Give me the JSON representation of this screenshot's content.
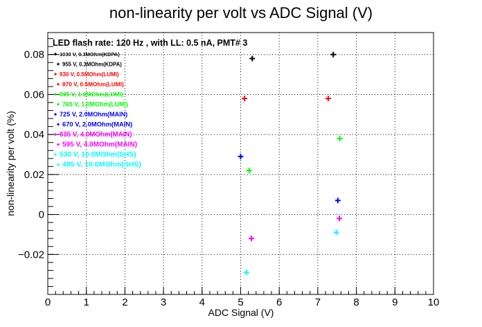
{
  "chart_data": {
    "type": "scatter",
    "title": "non-linearity per volt vs ADC Signal (V)",
    "xlabel": "ADC Signal (V)",
    "ylabel": "non-linearity per volt (%)",
    "xlim": [
      0,
      10
    ],
    "ylim": [
      -0.04,
      0.091
    ],
    "x_ticks": [
      0,
      1,
      2,
      3,
      4,
      5,
      6,
      7,
      8,
      9,
      10
    ],
    "y_ticks": [
      -0.02,
      0,
      0.02,
      0.04,
      0.06,
      0.08
    ],
    "y_tick_labels": [
      "−0.02",
      "0",
      "0.02",
      "0.04",
      "0.06",
      "0.08"
    ],
    "grid": true,
    "annotation": "LED flash rate: 120 Hz , with LL: 0.5 nA, PMT# 3",
    "legend_position": "top-left",
    "series": [
      {
        "name": "1030 V, 0.3MOhm(KDPA)",
        "color": "#000000",
        "x": [
          7.4
        ],
        "y": [
          0.08
        ]
      },
      {
        "name": "955 V, 0.3MOhm(KDPA)",
        "color": "#000000",
        "x": [
          5.3
        ],
        "y": [
          0.078
        ]
      },
      {
        "name": "930 V, 0.5MOhm(LUMI)",
        "color": "#ff0000",
        "x": [
          7.27
        ],
        "y": [
          0.058
        ]
      },
      {
        "name": "870 V, 0.5MOhm(LUMI)",
        "color": "#ff0000",
        "x": [
          5.1
        ],
        "y": [
          0.058
        ]
      },
      {
        "name": "805 V, 1.0MOhm(LUMI)",
        "color": "#00ff00",
        "x": [
          7.57
        ],
        "y": [
          0.038
        ]
      },
      {
        "name": "765 V, 1.0MOhm(LUMI)",
        "color": "#00ff00",
        "x": [
          5.22
        ],
        "y": [
          0.022
        ]
      },
      {
        "name": "725 V, 2.0MOhm(MAIN)",
        "color": "#0000ff",
        "x": [
          7.52
        ],
        "y": [
          0.007
        ]
      },
      {
        "name": "670 V, 2.0MOhm(MAIN)",
        "color": "#0000ff",
        "x": [
          5.0
        ],
        "y": [
          0.029
        ]
      },
      {
        "name": "635 V, 4.0MOhm(MAIN)",
        "color": "#ff00ff",
        "x": [
          7.56
        ],
        "y": [
          -0.002
        ]
      },
      {
        "name": "595 V, 4.0MOhm(MAIN)",
        "color": "#ff00ff",
        "x": [
          5.28
        ],
        "y": [
          -0.012
        ]
      },
      {
        "name": "530 V, 10.0MOhm(SHS)",
        "color": "#00ffff",
        "x": [
          7.48
        ],
        "y": [
          -0.009
        ]
      },
      {
        "name": "495 V, 10.0MOhm(SHS)",
        "color": "#00ffff",
        "x": [
          5.15
        ],
        "y": [
          -0.029
        ]
      }
    ]
  }
}
